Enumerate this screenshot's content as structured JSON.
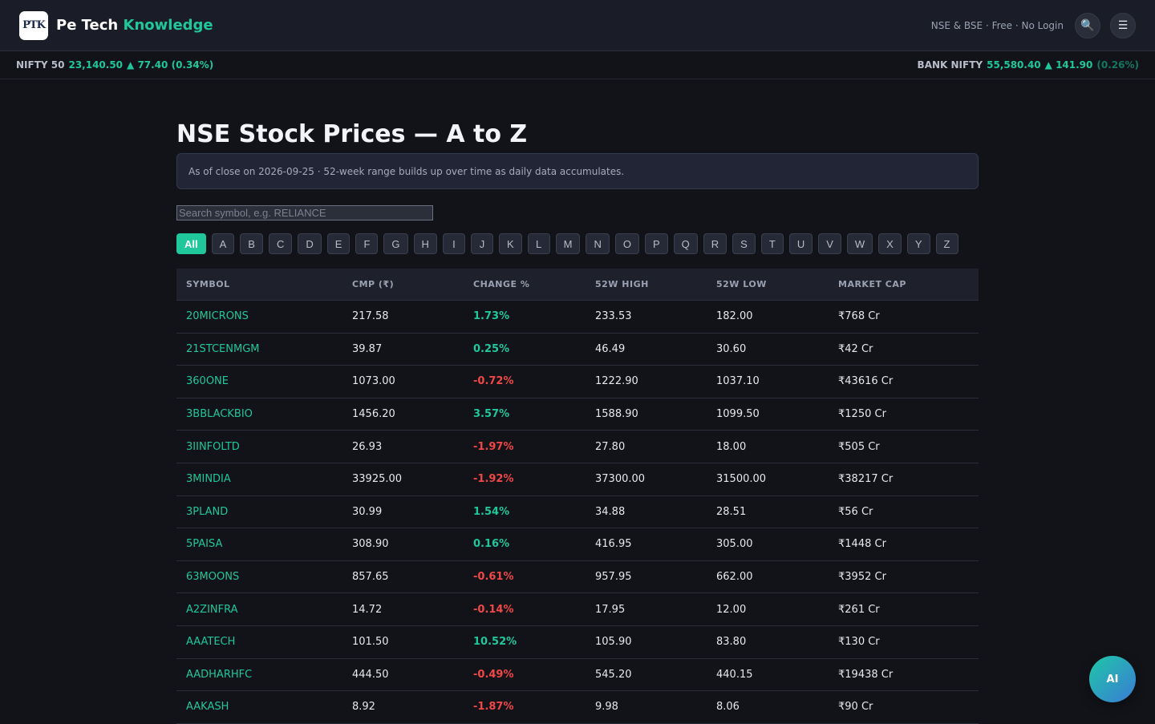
{
  "header": {
    "logo_text": "PTK",
    "brand_name": "Pe Tech",
    "brand_accent": "Knowledge",
    "tagline": "NSE & BSE · Free · No Login",
    "search_icon": "🔍",
    "menu_icon": "☰"
  },
  "ticker": {
    "left": {
      "name": "NIFTY 50",
      "value": "23,140.50",
      "change": "▲ 77.40 (0.34%)"
    },
    "right": {
      "name": "BANK NIFTY",
      "value": "55,580.40",
      "change": "▲ 141.90",
      "change_pct": "(0.26%)"
    }
  },
  "main": {
    "title": "NSE Stock Prices — A to Z",
    "info": "As of close on 2026-09-25 · 52-week range builds up over time as daily data accumulates.",
    "search_placeholder": "Search symbol, e.g. RELIANCE",
    "letters": [
      "All",
      "A",
      "B",
      "C",
      "D",
      "E",
      "F",
      "G",
      "H",
      "I",
      "J",
      "K",
      "L",
      "M",
      "N",
      "O",
      "P",
      "Q",
      "R",
      "S",
      "T",
      "U",
      "V",
      "W",
      "X",
      "Y",
      "Z"
    ]
  },
  "table": {
    "columns": [
      "SYMBOL",
      "CMP (₹)",
      "CHANGE %",
      "52W HIGH",
      "52W LOW",
      "MARKET CAP"
    ],
    "rows": [
      {
        "symbol": "20MICRONS",
        "cmp": "217.58",
        "change": "1.73%",
        "high": "233.53",
        "low": "182.00",
        "mcap": "₹768 Cr"
      },
      {
        "symbol": "21STCENMGM",
        "cmp": "39.87",
        "change": "0.25%",
        "high": "46.49",
        "low": "30.60",
        "mcap": "₹42 Cr"
      },
      {
        "symbol": "360ONE",
        "cmp": "1073.00",
        "change": "-0.72%",
        "high": "1222.90",
        "low": "1037.10",
        "mcap": "₹43616 Cr"
      },
      {
        "symbol": "3BBLACKBIO",
        "cmp": "1456.20",
        "change": "3.57%",
        "high": "1588.90",
        "low": "1099.50",
        "mcap": "₹1250 Cr"
      },
      {
        "symbol": "3IINFOLTD",
        "cmp": "26.93",
        "change": "-1.97%",
        "high": "27.80",
        "low": "18.00",
        "mcap": "₹505 Cr"
      },
      {
        "symbol": "3MINDIA",
        "cmp": "33925.00",
        "change": "-1.92%",
        "high": "37300.00",
        "low": "31500.00",
        "mcap": "₹38217 Cr"
      },
      {
        "symbol": "3PLAND",
        "cmp": "30.99",
        "change": "1.54%",
        "high": "34.88",
        "low": "28.51",
        "mcap": "₹56 Cr"
      },
      {
        "symbol": "5PAISA",
        "cmp": "308.90",
        "change": "0.16%",
        "high": "416.95",
        "low": "305.00",
        "mcap": "₹1448 Cr"
      },
      {
        "symbol": "63MOONS",
        "cmp": "857.65",
        "change": "-0.61%",
        "high": "957.95",
        "low": "662.00",
        "mcap": "₹3952 Cr"
      },
      {
        "symbol": "A2ZINFRA",
        "cmp": "14.72",
        "change": "-0.14%",
        "high": "17.95",
        "low": "12.00",
        "mcap": "₹261 Cr"
      },
      {
        "symbol": "AAATECH",
        "cmp": "101.50",
        "change": "10.52%",
        "high": "105.90",
        "low": "83.80",
        "mcap": "₹130 Cr"
      },
      {
        "symbol": "AADHARHFC",
        "cmp": "444.50",
        "change": "-0.49%",
        "high": "545.20",
        "low": "440.15",
        "mcap": "₹19438 Cr"
      },
      {
        "symbol": "AAKASH",
        "cmp": "8.92",
        "change": "-1.87%",
        "high": "9.98",
        "low": "8.06",
        "mcap": "₹90 Cr"
      }
    ]
  },
  "ai_button": "AI"
}
